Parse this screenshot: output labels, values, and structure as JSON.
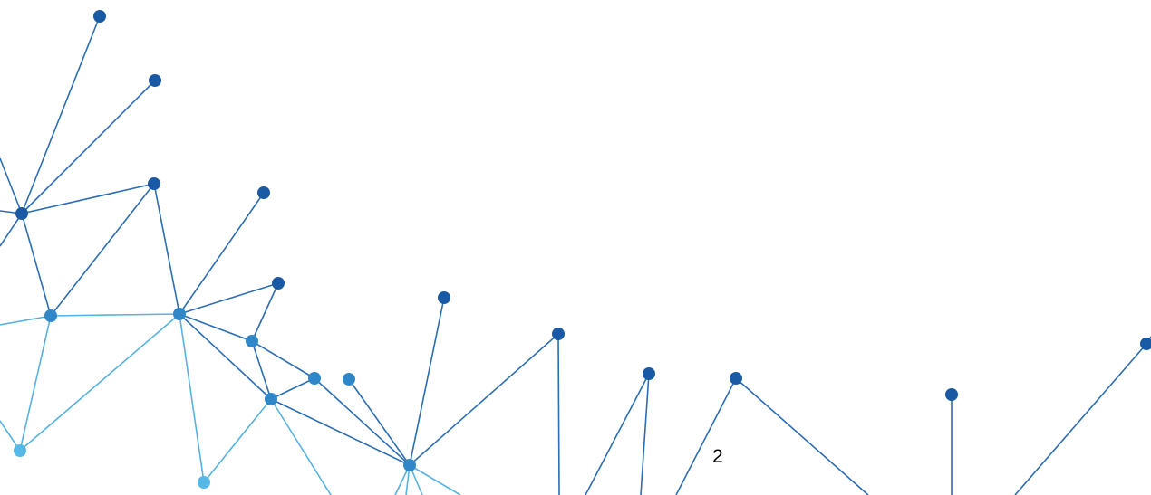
{
  "page": {
    "number": "2"
  },
  "decoration": {
    "name": "network-graphic",
    "colors": {
      "dark_blue": "#1a5aa5",
      "mid_blue": "#2f87c8",
      "light_blue": "#56b8e6",
      "line": "#2c6db3",
      "line_light": "#56b2e0"
    }
  }
}
